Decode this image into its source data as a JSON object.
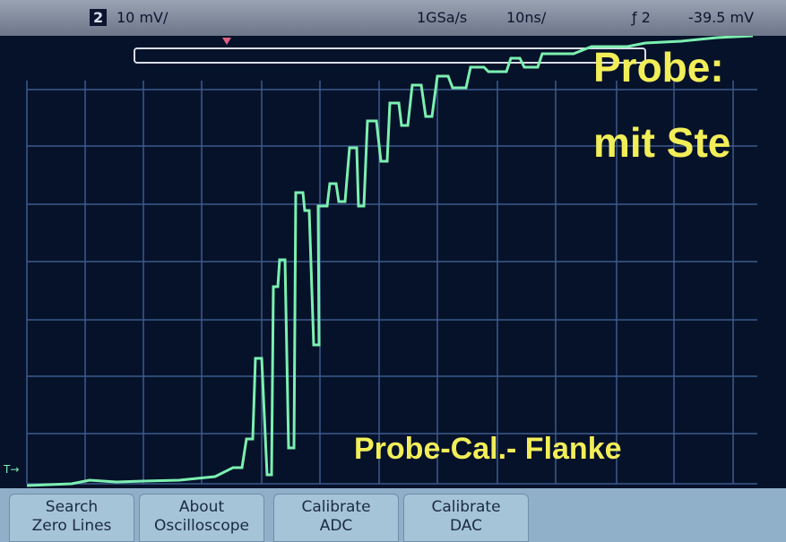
{
  "status_bar": {
    "channel": "2",
    "scale": "10 mV/",
    "sample_rate": "1GSa/s",
    "timebase": "10ns/",
    "trigger": "ƒ 2",
    "trigger_level": "-39.5 mV"
  },
  "overlay": {
    "title_line1": "Probe:",
    "title_line2": "mit Ste",
    "caption": "Probe-Cal.- Flanke"
  },
  "softkeys": [
    {
      "line1": "Search",
      "line2": "Zero Lines"
    },
    {
      "line1": "About",
      "line2": "Oscilloscope"
    },
    {
      "line1": "Calibrate",
      "line2": "ADC"
    },
    {
      "line1": "Calibrate",
      "line2": "DAC"
    }
  ]
}
